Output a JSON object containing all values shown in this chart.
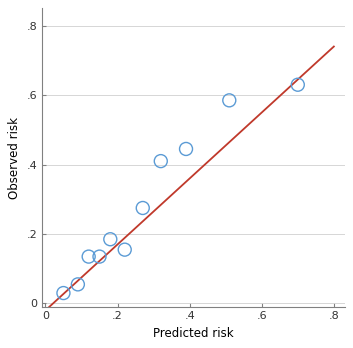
{
  "x_points": [
    0.05,
    0.09,
    0.12,
    0.15,
    0.18,
    0.22,
    0.27,
    0.32,
    0.39,
    0.51,
    0.7
  ],
  "y_points": [
    0.03,
    0.055,
    0.135,
    0.135,
    0.185,
    0.155,
    0.275,
    0.41,
    0.445,
    0.585,
    0.63
  ],
  "line_x": [
    0.0,
    0.8
  ],
  "line_y": [
    -0.02,
    0.74
  ],
  "xlabel": "Predicted risk",
  "ylabel": "Observed risk",
  "xlim": [
    -0.01,
    0.83
  ],
  "ylim": [
    -0.01,
    0.85
  ],
  "xticks": [
    0.0,
    0.2,
    0.4,
    0.6,
    0.8
  ],
  "yticks": [
    0.0,
    0.2,
    0.4,
    0.6,
    0.8
  ],
  "xtick_labels": [
    "0",
    ".2",
    ".4",
    ".6",
    ".8"
  ],
  "ytick_labels": [
    "0",
    ".2",
    ".4",
    ".6",
    ".8"
  ],
  "scatter_edgecolor": "#5b9bd5",
  "line_color": "#c0392b",
  "marker_size": 5,
  "line_width": 1.3,
  "bg_color": "#ffffff",
  "grid_color": "#d0d0d0",
  "spine_color": "#808080",
  "tick_color": "#808080",
  "label_fontsize": 8.5,
  "tick_fontsize": 8
}
